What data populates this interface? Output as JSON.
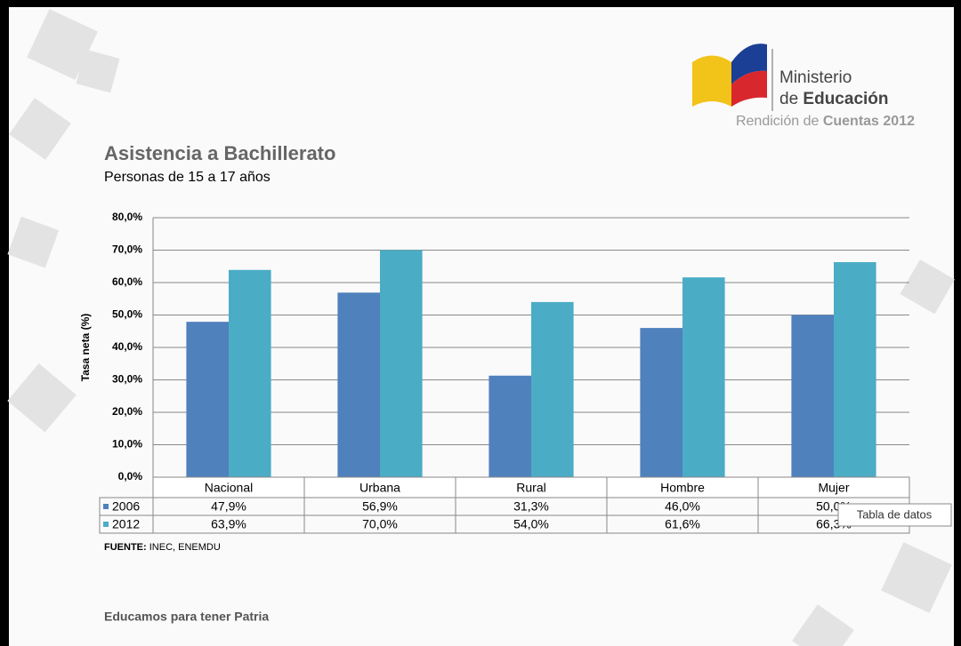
{
  "header": {
    "ministry": [
      "Ministerio",
      "de",
      "Educación"
    ],
    "report": [
      "Rendición de",
      "Cuentas 2012"
    ]
  },
  "chart_data": {
    "type": "bar",
    "title": "Asistencia a Bachillerato",
    "subtitle": "Personas de 15 a 17 años",
    "y_label": "Tasa neta (%)",
    "categories": [
      "Nacional",
      "Urbana",
      "Rural",
      "Hombre",
      "Mujer"
    ],
    "series": [
      {
        "name": "2006",
        "color": "#4f81bd",
        "values": [
          47.9,
          56.9,
          31.3,
          46.0,
          50.0
        ],
        "value_labels": [
          "47,9%",
          "56,9%",
          "31,3%",
          "46,0%",
          "50,0%"
        ]
      },
      {
        "name": "2012",
        "color": "#4bacc6",
        "values": [
          63.9,
          70.0,
          54.0,
          61.6,
          66.3
        ],
        "value_labels": [
          "63,9%",
          "70,0%",
          "54,0%",
          "61,6%",
          "66,3%"
        ]
      }
    ],
    "ylim": [
      0,
      80
    ],
    "yticks": [
      {
        "value": 0,
        "label": "0,0%"
      },
      {
        "value": 10,
        "label": "10,0%"
      },
      {
        "value": 20,
        "label": "20,0%"
      },
      {
        "value": 30,
        "label": "30,0%"
      },
      {
        "value": 40,
        "label": "40,0%"
      },
      {
        "value": 50,
        "label": "50,0%"
      },
      {
        "value": 60,
        "label": "60,0%"
      },
      {
        "value": 70,
        "label": "70,0%"
      },
      {
        "value": 80,
        "label": "80,0%"
      }
    ],
    "grid": true,
    "source": [
      "FUENTE:",
      "INEC, ENEMDU"
    ]
  },
  "footer": "Educamos para tener Patria",
  "tooltip": "Tabla de datos"
}
